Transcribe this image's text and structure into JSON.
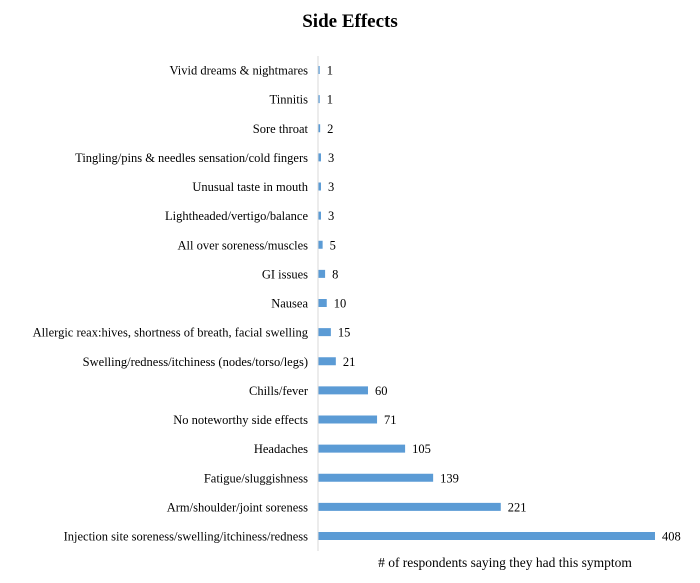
{
  "chart_data": {
    "type": "bar",
    "orientation": "horizontal",
    "title": "Side Effects",
    "xlabel": "# of respondents saying they had this symptom",
    "ylabel": "",
    "bar_color": "#5B9BD5",
    "grid": false,
    "legend": "none",
    "xlim": [
      0,
      408
    ],
    "categories": [
      "Vivid dreams & nightmares",
      "Tinnitis",
      "Sore throat",
      "Tingling/pins & needles sensation/cold fingers",
      "Unusual taste in mouth",
      "Lightheaded/vertigo/balance",
      "All over soreness/muscles",
      "GI issues",
      "Nausea",
      "Allergic reax:hives, shortness of breath, facial swelling",
      "Swelling/redness/itchiness (nodes/torso/legs)",
      "Chills/fever",
      "No noteworthy side effects",
      "Headaches",
      "Fatigue/sluggishness",
      "Arm/shoulder/joint soreness",
      "Injection site soreness/swelling/itchiness/redness"
    ],
    "values": [
      1,
      1,
      2,
      3,
      3,
      3,
      5,
      8,
      10,
      15,
      21,
      60,
      71,
      105,
      139,
      221,
      408
    ]
  }
}
